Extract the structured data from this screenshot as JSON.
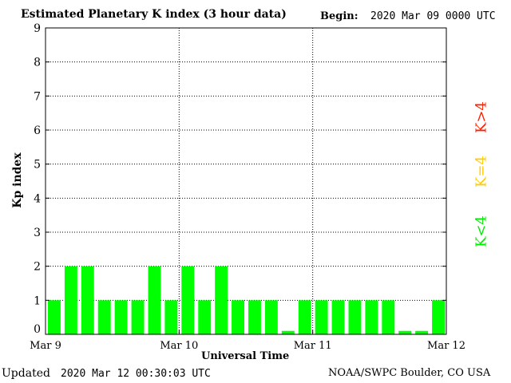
{
  "header": {
    "title": "Estimated Planetary K index (3 hour data)",
    "begin_label": "Begin:",
    "begin_value": "2020 Mar 09 0000 UTC"
  },
  "footer": {
    "updated_label": "Updated",
    "updated_value": "2020 Mar 12 00:30:03 UTC",
    "credit": "NOAA/SWPC Boulder, CO USA"
  },
  "legend": {
    "high": "K>4",
    "equal": "K=4",
    "low": "K<4"
  },
  "colors": {
    "low": "#00ff00",
    "equal": "#ffcc00",
    "high": "#ff2200"
  },
  "chart_data": {
    "type": "bar",
    "title": "Estimated Planetary K index (3 hour data)",
    "xlabel": "Universal Time",
    "ylabel": "Kp index",
    "ylim": [
      0,
      9
    ],
    "yticks": [
      0,
      1,
      2,
      3,
      4,
      5,
      6,
      7,
      8,
      9
    ],
    "xticks": [
      "Mar 9",
      "Mar 10",
      "Mar 11",
      "Mar 12"
    ],
    "interval_hours": 3,
    "grid": true,
    "values": [
      1,
      2,
      2,
      1,
      1,
      1,
      2,
      1,
      2,
      1,
      2,
      1,
      1,
      1,
      0.1,
      1,
      1,
      1,
      1,
      1,
      1,
      0.1,
      0.1,
      1
    ]
  }
}
